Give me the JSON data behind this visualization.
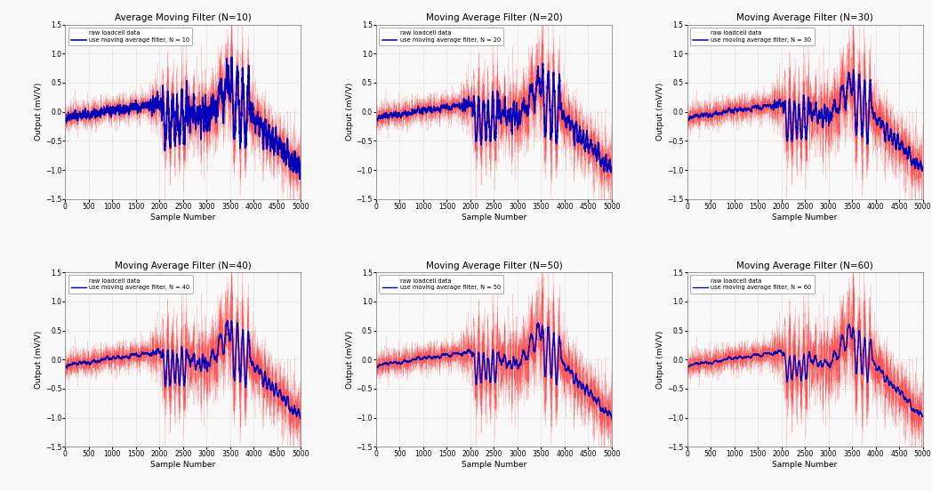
{
  "titles": [
    "Average Moving Filter (N=10)",
    "Moving Average Filter (N=20)",
    "Moving Average Filter (N=30)",
    "Moving Average Filter (N=40)",
    "Moving Average Filter (N=50)",
    "Moving Average Filter (N=60)"
  ],
  "N_values": [
    10,
    20,
    30,
    40,
    50,
    60
  ],
  "xlabel": "Sample Number",
  "ylabel": "Output (mV/V)",
  "xlim": [
    0,
    5000
  ],
  "ylim": [
    -1.5,
    1.5
  ],
  "yticks": [
    -1.5,
    -1.0,
    -0.5,
    0.0,
    0.5,
    1.0,
    1.5
  ],
  "xticks": [
    0,
    500,
    1000,
    1500,
    2000,
    2500,
    3000,
    3500,
    4000,
    4500,
    5000
  ],
  "raw_color": "#FF4444",
  "filtered_color": "#0000BB",
  "raw_label": "raw loadcell data",
  "filtered_label_template": "use moving average filter, N = {N}",
  "background_color": "#f8f8f8",
  "grid_color": "#bbbbbb",
  "n_samples": 5000,
  "seed": 42,
  "figsize": [
    10.48,
    5.52
  ],
  "dpi": 100
}
